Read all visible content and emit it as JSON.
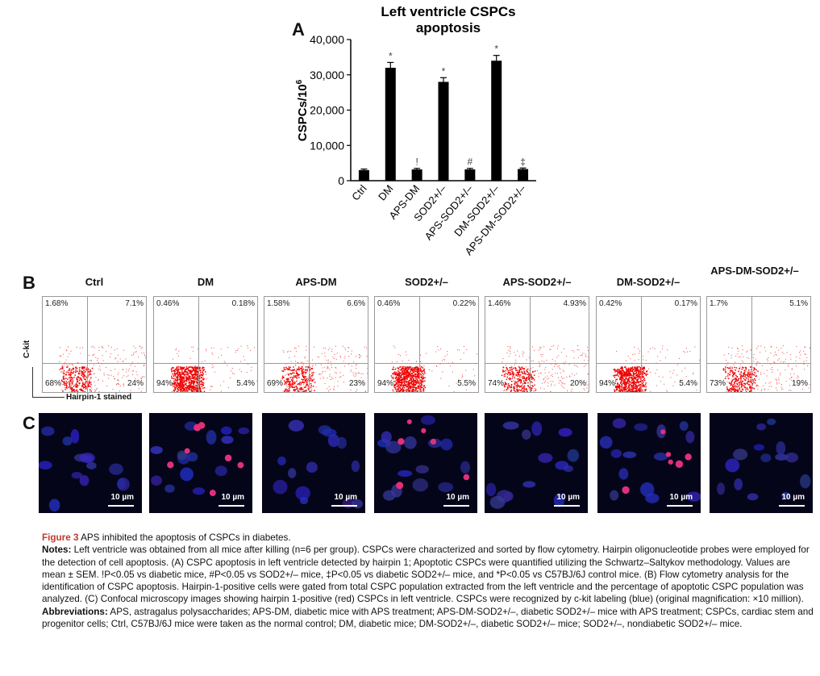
{
  "chart_data": {
    "type": "bar",
    "panel_label": "A",
    "title_line1": "Left ventricle CSPCs",
    "title_line2": "apoptosis",
    "ylabel": "CSPCs/10",
    "ylabel_sup": "6",
    "ylim": [
      0,
      40000
    ],
    "yticks": [
      0,
      10000,
      20000,
      30000,
      40000
    ],
    "ytick_labels": [
      "0",
      "10,000",
      "20,000",
      "30,000",
      "40,000"
    ],
    "categories": [
      "Ctrl",
      "DM",
      "APS-DM",
      "SOD2+/–",
      "APS-SOD2+/–",
      "DM-SOD2+/–",
      "APS-DM-SOD2+/–"
    ],
    "values": [
      3000,
      32000,
      3200,
      28000,
      3200,
      34000,
      3300
    ],
    "errors": [
      300,
      1500,
      300,
      1200,
      300,
      1500,
      300
    ],
    "markers": [
      "",
      "*",
      "!",
      "*",
      "#",
      "*",
      "‡"
    ]
  },
  "flow": {
    "panel_label": "B",
    "y_axis_label": "C-kit",
    "x_axis_label": "Hairpin-1 stained",
    "panels": [
      {
        "title": "Ctrl",
        "tl": "1.68%",
        "tr": "7.1%",
        "bl": "68%",
        "br": "24%"
      },
      {
        "title": "DM",
        "tl": "0.46%",
        "tr": "0.18%",
        "bl": "94%",
        "br": "5.4%"
      },
      {
        "title": "APS-DM",
        "tl": "1.58%",
        "tr": "6.6%",
        "bl": "69%",
        "br": "23%"
      },
      {
        "title": "SOD2+/–",
        "tl": "0.46%",
        "tr": "0.22%",
        "bl": "94%",
        "br": "5.5%"
      },
      {
        "title": "APS-SOD2+/–",
        "tl": "1.46%",
        "tr": "4.93%",
        "bl": "74%",
        "br": "20%"
      },
      {
        "title": "DM-SOD2+/–",
        "tl": "0.42%",
        "tr": "0.17%",
        "bl": "94%",
        "br": "5.4%"
      },
      {
        "title": "APS-DM-SOD2+/–",
        "tl": "1.7%",
        "tr": "5.1%",
        "bl": "73%",
        "br": "19%"
      }
    ]
  },
  "confocal": {
    "panel_label": "C",
    "scale_text": "10 µm",
    "panels": 7
  },
  "caption": {
    "fig_label": "Figure 3",
    "fig_title": " APS inhibited the apoptosis of CSPCs in diabetes.",
    "notes_label": "Notes:",
    "notes_text": " Left ventricle was obtained from all mice after killing (n=6 per group). CSPCs were characterized and sorted by flow cytometry. Hairpin oligonucleotide probes were employed for the detection of cell apoptosis. (A) CSPC apoptosis in left ventricle detected by hairpin 1; Apoptotic CSPCs were quantified utilizing the Schwartz–Saltykov methodology. Values are mean ± SEM. !P<0.05 vs diabetic mice, #P<0.05 vs SOD2+/– mice, ‡P<0.05 vs diabetic SOD2+/– mice, and *P<0.05 vs C57BJ/6J control mice. (B) Flow cytometry analysis for the identification of CSPC apoptosis. Hairpin-1-positive cells were gated from total CSPC population extracted from the left ventricle and the percentage of apoptotic CSPC population was analyzed. (C) Confocal microscopy images showing hairpin 1-positive (red) CSPCs in left ventricle. CSPCs were recognized by c-kit labeling (blue) (original magnification: ×10 million).",
    "abbr_label": "Abbreviations:",
    "abbr_text": " APS, astragalus polysaccharides; APS-DM, diabetic mice with APS treatment; APS-DM-SOD2+/–, diabetic SOD2+/– mice with APS treatment; CSPCs, cardiac stem and progenitor cells; Ctrl, C57BJ/6J mice were taken as the normal control; DM, diabetic mice; DM-SOD2+/–, diabetic SOD2+/– mice; SOD2+/–, nondiabetic SOD2+/– mice."
  }
}
